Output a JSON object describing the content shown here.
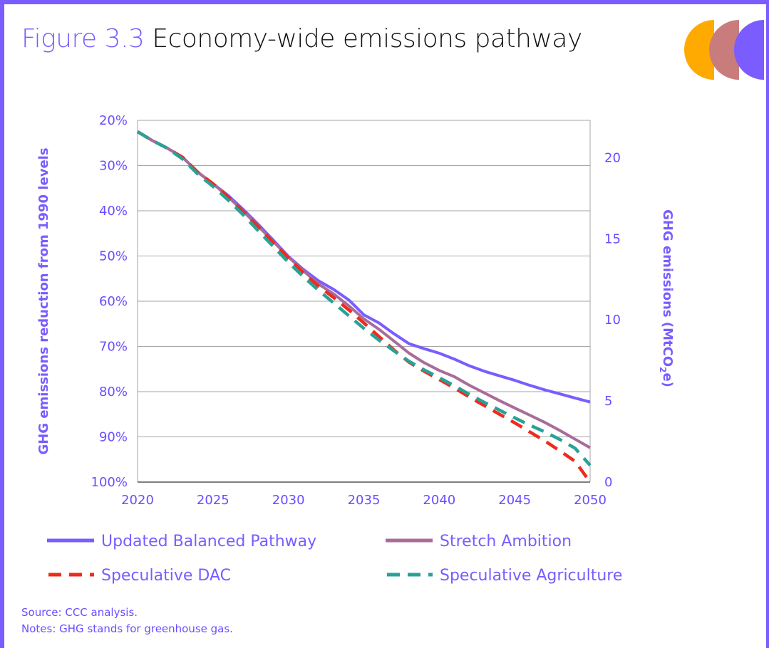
{
  "header": {
    "figure_number": "Figure 3.3",
    "title": "Economy-wide emissions pathway"
  },
  "footer": {
    "source": "Source: CCC analysis.",
    "notes": "Notes: GHG stands for greenhouse gas."
  },
  "logo": {
    "colors": [
      "#ffaa00",
      "#c97c7c",
      "#7a5cff"
    ]
  },
  "colors": {
    "accent": "#7a5cff",
    "axis_text": "#6d4cff",
    "grid": "#a6a6a6"
  },
  "chart_data": {
    "type": "line",
    "xlabel": "",
    "ylabel_left": "GHG emissions reduction from 1990 levels",
    "ylabel_right_prefix": "GHG emissions (MtCO",
    "ylabel_right_sub": "2",
    "ylabel_right_suffix": "e)",
    "xlim": [
      2020,
      2050
    ],
    "x_ticks": [
      2020,
      2025,
      2030,
      2035,
      2040,
      2045,
      2050
    ],
    "x_tick_labels": [
      "2020",
      "2025",
      "2030",
      "2035",
      "2040",
      "2045",
      "2050"
    ],
    "ylim_left": [
      20,
      100
    ],
    "left_ticks": [
      20,
      30,
      40,
      50,
      60,
      70,
      80,
      90,
      100
    ],
    "left_tick_labels": [
      "20%",
      "30%",
      "40%",
      "50%",
      "60%",
      "70%",
      "80%",
      "90%",
      "100%"
    ],
    "right_ticks": [
      20,
      15,
      10,
      5,
      0
    ],
    "right_tick_labels": [
      "20",
      "15",
      "10",
      "5",
      "0"
    ],
    "grid": true,
    "legend_position": "bottom",
    "series": [
      {
        "name": "Updated Balanced Pathway",
        "color": "#7a5cff",
        "dash": "solid",
        "x": [
          2020,
          2021,
          2022,
          2023,
          2024,
          2025,
          2026,
          2027,
          2028,
          2029,
          2030,
          2031,
          2032,
          2033,
          2034,
          2035,
          2036,
          2037,
          2038,
          2039,
          2040,
          2041,
          2042,
          2043,
          2044,
          2045,
          2046,
          2047,
          2048,
          2049,
          2050
        ],
        "values": [
          22.5,
          24.5,
          26.2,
          28.2,
          31.5,
          34,
          36.6,
          39.7,
          43,
          46.5,
          50.1,
          53,
          55.5,
          57.4,
          59.7,
          63,
          64.8,
          67.2,
          69.4,
          70.5,
          71.5,
          72.8,
          74.3,
          75.5,
          76.5,
          77.5,
          78.6,
          79.6,
          80.5,
          81.4,
          82.3
        ]
      },
      {
        "name": "Stretch Ambition",
        "color": "#a86c9a",
        "dash": "solid",
        "x": [
          2020,
          2021,
          2022,
          2023,
          2024,
          2025,
          2026,
          2027,
          2028,
          2029,
          2030,
          2031,
          2032,
          2033,
          2034,
          2035,
          2036,
          2037,
          2038,
          2039,
          2040,
          2041,
          2042,
          2043,
          2044,
          2045,
          2046,
          2047,
          2048,
          2049,
          2050
        ],
        "values": [
          22.5,
          24.5,
          26.2,
          28.2,
          31.5,
          34,
          36.9,
          40.1,
          43.4,
          46.8,
          50.2,
          53.3,
          56.2,
          58.4,
          61,
          63.9,
          66.2,
          68.8,
          71.5,
          73.6,
          75.3,
          76.7,
          78.6,
          80.3,
          82,
          83.6,
          85.2,
          86.8,
          88.6,
          90.5,
          92.4
        ]
      },
      {
        "name": "Speculative DAC",
        "color": "#ee2c1c",
        "dash": "dashed",
        "x": [
          2020,
          2021,
          2022,
          2023,
          2024,
          2025,
          2026,
          2027,
          2028,
          2029,
          2030,
          2031,
          2032,
          2033,
          2034,
          2035,
          2036,
          2037,
          2038,
          2039,
          2040,
          2041,
          2042,
          2043,
          2044,
          2045,
          2046,
          2047,
          2048,
          2049,
          2050
        ],
        "values": [
          22.5,
          24.5,
          26.2,
          28.2,
          31.5,
          34,
          36.9,
          40.2,
          43.5,
          47,
          50.4,
          53.7,
          56.7,
          59.2,
          61.9,
          64.8,
          67.8,
          70.8,
          73.5,
          75.5,
          77.3,
          79.2,
          81.2,
          83.1,
          85,
          86.9,
          88.9,
          90.9,
          93.1,
          95.4,
          100
        ]
      },
      {
        "name": "Speculative Agriculture",
        "color": "#2aa198",
        "dash": "dashed",
        "x": [
          2020,
          2021,
          2022,
          2023,
          2024,
          2025,
          2026,
          2027,
          2028,
          2029,
          2030,
          2031,
          2032,
          2033,
          2034,
          2035,
          2036,
          2037,
          2038,
          2039,
          2040,
          2041,
          2042,
          2043,
          2044,
          2045,
          2046,
          2047,
          2048,
          2049,
          2050
        ],
        "values": [
          22.5,
          24.5,
          26.2,
          28.6,
          31.9,
          34.6,
          37.6,
          40.9,
          44.4,
          47.9,
          51.4,
          54.6,
          57.6,
          60.4,
          63.2,
          66,
          68.6,
          71,
          73.3,
          75.2,
          76.9,
          78.7,
          80.6,
          82.4,
          84.1,
          85.8,
          87.4,
          88.9,
          90.6,
          92.5,
          96.3
        ]
      }
    ]
  }
}
